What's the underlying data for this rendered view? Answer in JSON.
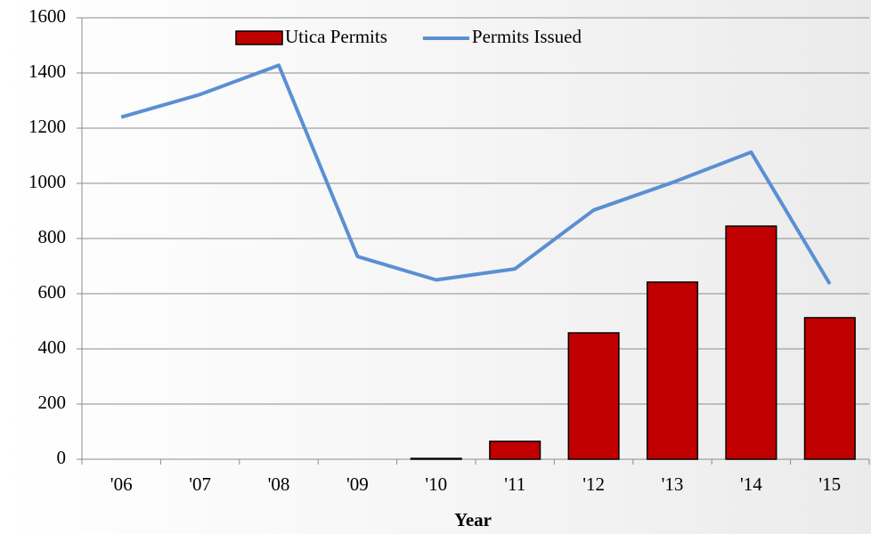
{
  "chart_data": {
    "type": "bar",
    "categories": [
      "'06",
      "'07",
      "'08",
      "'09",
      "'10",
      "'11",
      "'12",
      "'13",
      "'14",
      "'15"
    ],
    "series": [
      {
        "name": "Utica Permits",
        "type": "bar",
        "color": "#c00000",
        "values": [
          0,
          0,
          0,
          0,
          3,
          65,
          458,
          642,
          845,
          513
        ]
      },
      {
        "name": "Permits Issued",
        "type": "line",
        "color": "#5b8fd4",
        "values": [
          1240,
          1322,
          1428,
          735,
          650,
          690,
          903,
          1003,
          1113,
          635
        ]
      }
    ],
    "xlabel": "Year",
    "ylim": [
      0,
      1600
    ],
    "yticks": [
      0,
      200,
      400,
      600,
      800,
      1000,
      1200,
      1400,
      1600
    ],
    "grid": true,
    "legend": "top"
  }
}
